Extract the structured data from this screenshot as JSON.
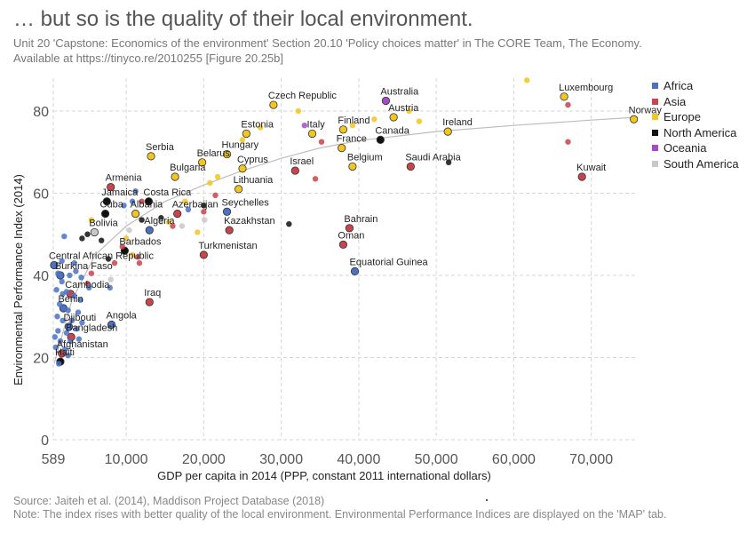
{
  "header": {
    "title": "… but so is the quality of their local environment.",
    "subtitle_line1": "Unit 20 'Capstone: Economics of the environment' Section 20.10 'Policy choices matter' in The CORE Team, The Economy.",
    "subtitle_line2": "Available at https://tinyco.re/2010255 [Figure 20.25b]"
  },
  "footer": {
    "source": "Source: Jaiteh et al. (2014), Maddison Project Database (2018)",
    "note": "Note: The index rises with better quality of the local environment. Environmental Performance Indices are displayed on the 'MAP' tab."
  },
  "legend": {
    "items": [
      {
        "name": "Africa",
        "color": "#4a72c4"
      },
      {
        "name": "Asia",
        "color": "#c9444b"
      },
      {
        "name": "Europe",
        "color": "#f2c51f"
      },
      {
        "name": "North America",
        "color": "#111111"
      },
      {
        "name": "Oceania",
        "color": "#a64ac9"
      },
      {
        "name": "South America",
        "color": "#c8c8c8"
      }
    ]
  },
  "chart_data": {
    "type": "scatter",
    "xlabel": "GDP per capita in 2014 (PPP, constant 2011 international dollars)",
    "ylabel": "Environmental Performance Index (2014)",
    "xlim": [
      589,
      76000
    ],
    "ylim": [
      0,
      88
    ],
    "xticks": [
      589,
      10000,
      20000,
      30000,
      40000,
      50000,
      60000,
      70000
    ],
    "xtick_labels": [
      "589",
      "10,000",
      "20,000",
      "30,000",
      "40,000",
      "50,000",
      "60,000",
      "70,000"
    ],
    "yticks": [
      0,
      20,
      40,
      60,
      80
    ],
    "grid": true,
    "legend_position": "right",
    "trend_line": [
      [
        700,
        18.5
      ],
      [
        3000,
        34
      ],
      [
        6000,
        45
      ],
      [
        10000,
        52
      ],
      [
        15000,
        58
      ],
      [
        20000,
        62
      ],
      [
        25000,
        65.5
      ],
      [
        30000,
        68.5
      ],
      [
        35000,
        71
      ],
      [
        40000,
        72.8
      ],
      [
        50000,
        75
      ],
      [
        60000,
        76.5
      ],
      [
        70000,
        77.8
      ],
      [
        76000,
        78.5
      ]
    ],
    "points": [
      {
        "label": "Czech Republic",
        "region": "Europe",
        "x": 29000,
        "y": 81.5
      },
      {
        "label": "Australia",
        "region": "Oceania",
        "x": 43500,
        "y": 82.5
      },
      {
        "label": "Luxembourg",
        "region": "Europe",
        "x": 66500,
        "y": 83.5
      },
      {
        "label": "Norway",
        "region": "Europe",
        "x": 75500,
        "y": 78
      },
      {
        "label": "Austria",
        "region": "Europe",
        "x": 44500,
        "y": 78.5
      },
      {
        "label": "Estonia",
        "region": "Europe",
        "x": 25500,
        "y": 74.5
      },
      {
        "label": "Italy",
        "region": "Europe",
        "x": 34000,
        "y": 74.5
      },
      {
        "label": "Finland",
        "region": "Europe",
        "x": 38000,
        "y": 75.5
      },
      {
        "label": "Ireland",
        "region": "Europe",
        "x": 51500,
        "y": 75
      },
      {
        "label": "Canada",
        "region": "North America",
        "x": 42800,
        "y": 73
      },
      {
        "label": "France",
        "region": "Europe",
        "x": 37800,
        "y": 71
      },
      {
        "label": "Hungary",
        "region": "Europe",
        "x": 23000,
        "y": 69.5
      },
      {
        "label": "Serbia",
        "region": "Europe",
        "x": 13200,
        "y": 69
      },
      {
        "label": "Belarus",
        "region": "Europe",
        "x": 19800,
        "y": 67.5
      },
      {
        "label": "Cyprus",
        "region": "Europe",
        "x": 25000,
        "y": 66
      },
      {
        "label": "Israel",
        "region": "Asia",
        "x": 31800,
        "y": 65.5
      },
      {
        "label": "Belgium",
        "region": "Europe",
        "x": 39200,
        "y": 66.5
      },
      {
        "label": "Saudi Arabia",
        "region": "Asia",
        "x": 46700,
        "y": 66.5
      },
      {
        "label": "Bulgaria",
        "region": "Europe",
        "x": 16300,
        "y": 64
      },
      {
        "label": "Kuwait",
        "region": "Asia",
        "x": 68800,
        "y": 64
      },
      {
        "label": "Lithuania",
        "region": "Europe",
        "x": 24500,
        "y": 61
      },
      {
        "label": "Armenia",
        "region": "Asia",
        "x": 8000,
        "y": 61.5
      },
      {
        "label": "Jamaica",
        "region": "North America",
        "x": 7500,
        "y": 58
      },
      {
        "label": "Costa Rica",
        "region": "North America",
        "x": 12900,
        "y": 58
      },
      {
        "label": "Cuba",
        "region": "North America",
        "x": 7300,
        "y": 55
      },
      {
        "label": "Albania",
        "region": "Europe",
        "x": 11200,
        "y": 55
      },
      {
        "label": "Azerbaijan",
        "region": "Asia",
        "x": 16600,
        "y": 55
      },
      {
        "label": "Seychelles",
        "region": "Africa",
        "x": 23000,
        "y": 55.5
      },
      {
        "label": "Algeria",
        "region": "Africa",
        "x": 13000,
        "y": 51
      },
      {
        "label": "Kazakhstan",
        "region": "Asia",
        "x": 23300,
        "y": 51
      },
      {
        "label": "Bahrain",
        "region": "Asia",
        "x": 38800,
        "y": 51.5
      },
      {
        "label": "Bolivia",
        "region": "South America",
        "x": 5900,
        "y": 50.5
      },
      {
        "label": "Oman",
        "region": "Asia",
        "x": 38000,
        "y": 47.5
      },
      {
        "label": "Barbados",
        "region": "North America",
        "x": 9800,
        "y": 46
      },
      {
        "label": "Turkmenistan",
        "region": "Asia",
        "x": 20000,
        "y": 45
      },
      {
        "label": "Central African Republic",
        "region": "Africa",
        "x": 700,
        "y": 42.5
      },
      {
        "label": "Burkina Faso",
        "region": "Africa",
        "x": 1500,
        "y": 40
      },
      {
        "label": "Equatorial Guinea",
        "region": "Africa",
        "x": 39500,
        "y": 41
      },
      {
        "label": "Cambodia",
        "region": "Asia",
        "x": 2800,
        "y": 35.5
      },
      {
        "label": "Iraq",
        "region": "Asia",
        "x": 13000,
        "y": 33.5
      },
      {
        "label": "Benin",
        "region": "Africa",
        "x": 1900,
        "y": 32
      },
      {
        "label": "Djibouti",
        "region": "Africa",
        "x": 2600,
        "y": 27.5
      },
      {
        "label": "Angola",
        "region": "Africa",
        "x": 8100,
        "y": 28
      },
      {
        "label": "Bangladesh",
        "region": "Asia",
        "x": 2900,
        "y": 25
      },
      {
        "label": "Afghanistan",
        "region": "Asia",
        "x": 1700,
        "y": 21
      },
      {
        "label": "Haiti",
        "region": "North America",
        "x": 1500,
        "y": 19
      },
      {
        "label": "",
        "region": "Europe",
        "x": 61700,
        "y": 87.5
      },
      {
        "label": "",
        "region": "Europe",
        "x": 46500,
        "y": 80
      },
      {
        "label": "",
        "region": "Europe",
        "x": 32200,
        "y": 80
      },
      {
        "label": "",
        "region": "Europe",
        "x": 42000,
        "y": 78
      },
      {
        "label": "",
        "region": "Europe",
        "x": 47800,
        "y": 77.5
      },
      {
        "label": "",
        "region": "Europe",
        "x": 39200,
        "y": 76.5
      },
      {
        "label": "",
        "region": "Europe",
        "x": 27300,
        "y": 76
      },
      {
        "label": "",
        "region": "Europe",
        "x": 25000,
        "y": 73
      },
      {
        "label": "",
        "region": "Oceania",
        "x": 33000,
        "y": 76.5
      },
      {
        "label": "",
        "region": "Asia",
        "x": 67000,
        "y": 81.5
      },
      {
        "label": "",
        "region": "Asia",
        "x": 67000,
        "y": 72.5
      },
      {
        "label": "",
        "region": "Asia",
        "x": 35200,
        "y": 72.5
      },
      {
        "label": "",
        "region": "Asia",
        "x": 34400,
        "y": 63.5
      },
      {
        "label": "",
        "region": "North America",
        "x": 51600,
        "y": 67.5
      },
      {
        "label": "",
        "region": "North America",
        "x": 31000,
        "y": 52.5
      },
      {
        "label": "",
        "region": "North America",
        "x": 20000,
        "y": 57
      },
      {
        "label": "",
        "region": "North America",
        "x": 14500,
        "y": 54
      },
      {
        "label": "",
        "region": "North America",
        "x": 12000,
        "y": 53.5
      },
      {
        "label": "",
        "region": "North America",
        "x": 5000,
        "y": 50
      },
      {
        "label": "",
        "region": "North America",
        "x": 4300,
        "y": 49
      },
      {
        "label": "",
        "region": "North America",
        "x": 6800,
        "y": 48.5
      },
      {
        "label": "",
        "region": "North America",
        "x": 7700,
        "y": 44
      },
      {
        "label": "",
        "region": "Europe",
        "x": 17600,
        "y": 58
      },
      {
        "label": "",
        "region": "Europe",
        "x": 20800,
        "y": 62.5
      },
      {
        "label": "",
        "region": "Europe",
        "x": 21800,
        "y": 64
      },
      {
        "label": "",
        "region": "Europe",
        "x": 19200,
        "y": 50.5
      },
      {
        "label": "",
        "region": "Europe",
        "x": 10000,
        "y": 49
      },
      {
        "label": "",
        "region": "Europe",
        "x": 15500,
        "y": 53
      },
      {
        "label": "",
        "region": "Europe",
        "x": 5500,
        "y": 53.5
      },
      {
        "label": "",
        "region": "Europe",
        "x": 10800,
        "y": 45
      },
      {
        "label": "",
        "region": "Asia",
        "x": 21500,
        "y": 59.5
      },
      {
        "label": "",
        "region": "Asia",
        "x": 20000,
        "y": 55.5
      },
      {
        "label": "",
        "region": "Asia",
        "x": 12000,
        "y": 58
      },
      {
        "label": "",
        "region": "Asia",
        "x": 16000,
        "y": 52
      },
      {
        "label": "",
        "region": "Asia",
        "x": 11500,
        "y": 44.5
      },
      {
        "label": "",
        "region": "Asia",
        "x": 11700,
        "y": 43
      },
      {
        "label": "",
        "region": "Asia",
        "x": 9500,
        "y": 47
      },
      {
        "label": "",
        "region": "Asia",
        "x": 5500,
        "y": 40.5
      },
      {
        "label": "",
        "region": "Asia",
        "x": 5000,
        "y": 38
      },
      {
        "label": "",
        "region": "Asia",
        "x": 8500,
        "y": 43
      },
      {
        "label": "",
        "region": "South America",
        "x": 10400,
        "y": 51
      },
      {
        "label": "",
        "region": "South America",
        "x": 14500,
        "y": 53
      },
      {
        "label": "",
        "region": "South America",
        "x": 17200,
        "y": 52
      },
      {
        "label": "",
        "region": "South America",
        "x": 20100,
        "y": 53.5
      },
      {
        "label": "",
        "region": "South America",
        "x": 8000,
        "y": 39
      },
      {
        "label": "",
        "region": "Africa",
        "x": 11200,
        "y": 60.5
      },
      {
        "label": "",
        "region": "Africa",
        "x": 10800,
        "y": 58
      },
      {
        "label": "",
        "region": "Africa",
        "x": 9700,
        "y": 57
      },
      {
        "label": "",
        "region": "Africa",
        "x": 18000,
        "y": 56
      },
      {
        "label": "",
        "region": "Africa",
        "x": 2000,
        "y": 49.5
      },
      {
        "label": "",
        "region": "Africa",
        "x": 1200,
        "y": 40.5
      },
      {
        "label": "",
        "region": "Africa",
        "x": 1700,
        "y": 38.5
      },
      {
        "label": "",
        "region": "Africa",
        "x": 2700,
        "y": 40
      },
      {
        "label": "",
        "region": "Africa",
        "x": 3500,
        "y": 41
      },
      {
        "label": "",
        "region": "Africa",
        "x": 4200,
        "y": 39.5
      },
      {
        "label": "",
        "region": "Africa",
        "x": 1000,
        "y": 36.5
      },
      {
        "label": "",
        "region": "Africa",
        "x": 1800,
        "y": 35.5
      },
      {
        "label": "",
        "region": "Africa",
        "x": 2300,
        "y": 36
      },
      {
        "label": "",
        "region": "Africa",
        "x": 3300,
        "y": 35
      },
      {
        "label": "",
        "region": "Africa",
        "x": 4100,
        "y": 34
      },
      {
        "label": "",
        "region": "Africa",
        "x": 5200,
        "y": 37
      },
      {
        "label": "",
        "region": "Africa",
        "x": 7900,
        "y": 37
      },
      {
        "label": "",
        "region": "Africa",
        "x": 1400,
        "y": 33
      },
      {
        "label": "",
        "region": "Africa",
        "x": 2500,
        "y": 31.5
      },
      {
        "label": "",
        "region": "Africa",
        "x": 3800,
        "y": 31
      },
      {
        "label": "",
        "region": "Africa",
        "x": 1100,
        "y": 30
      },
      {
        "label": "",
        "region": "Africa",
        "x": 1800,
        "y": 29
      },
      {
        "label": "",
        "region": "Africa",
        "x": 3000,
        "y": 29
      },
      {
        "label": "",
        "region": "Africa",
        "x": 4300,
        "y": 28.5
      },
      {
        "label": "",
        "region": "Africa",
        "x": 1200,
        "y": 26.5
      },
      {
        "label": "",
        "region": "Africa",
        "x": 2300,
        "y": 26
      },
      {
        "label": "",
        "region": "Africa",
        "x": 3600,
        "y": 27
      },
      {
        "label": "",
        "region": "Africa",
        "x": 800,
        "y": 25
      },
      {
        "label": "",
        "region": "Africa",
        "x": 1500,
        "y": 24
      },
      {
        "label": "",
        "region": "Africa",
        "x": 2800,
        "y": 24
      },
      {
        "label": "",
        "region": "Africa",
        "x": 3900,
        "y": 24.5
      },
      {
        "label": "",
        "region": "Africa",
        "x": 900,
        "y": 22.5
      },
      {
        "label": "",
        "region": "Africa",
        "x": 2100,
        "y": 22
      },
      {
        "label": "",
        "region": "Africa",
        "x": 2500,
        "y": 20.5
      },
      {
        "label": "",
        "region": "Africa",
        "x": 1300,
        "y": 18.5
      },
      {
        "label": "",
        "region": "Africa",
        "x": 1700,
        "y": 43.5
      },
      {
        "label": "",
        "region": "Africa",
        "x": 3300,
        "y": 43
      }
    ]
  }
}
